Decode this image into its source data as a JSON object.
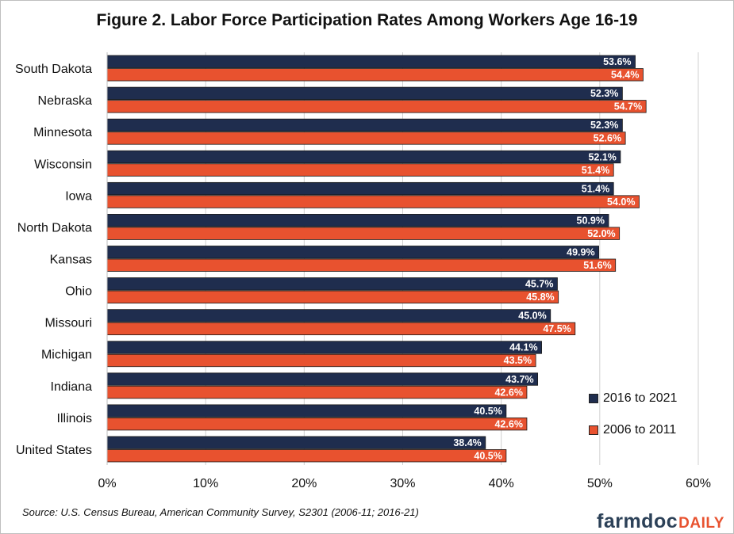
{
  "colors": {
    "series1": "#1f2d4e",
    "series2": "#e8522f"
  },
  "footer": {
    "source": "Source: U.S. Census Bureau, American Community Survey, S2301 (2006-11; 2016-21)",
    "brand_part1": "farmdoc",
    "brand_part2": "DAILY"
  },
  "chart_data": {
    "type": "bar",
    "orientation": "horizontal",
    "title": "Figure 2. Labor Force Participation Rates Among Workers Age 16-19",
    "categories": [
      "South Dakota",
      "Nebraska",
      "Minnesota",
      "Wisconsin",
      "Iowa",
      "North Dakota",
      "Kansas",
      "Ohio",
      "Missouri",
      "Michigan",
      "Indiana",
      "Illinois",
      "United States"
    ],
    "series": [
      {
        "name": "2016 to 2021",
        "values": [
          53.6,
          52.3,
          52.3,
          52.1,
          51.4,
          50.9,
          49.9,
          45.7,
          45.0,
          44.1,
          43.7,
          40.5,
          38.4
        ],
        "labels": [
          "53.6%",
          "52.3%",
          "52.3%",
          "52.1%",
          "51.4%",
          "50.9%",
          "49.9%",
          "45.7%",
          "45.0%",
          "44.1%",
          "43.7%",
          "40.5%",
          "38.4%"
        ]
      },
      {
        "name": "2006 to 2011",
        "values": [
          54.4,
          54.7,
          52.6,
          51.4,
          54.0,
          52.0,
          51.6,
          45.8,
          47.5,
          43.5,
          42.6,
          42.6,
          40.5
        ],
        "labels": [
          "54.4%",
          "54.7%",
          "52.6%",
          "51.4%",
          "54.0%",
          "52.0%",
          "51.6%",
          "45.8%",
          "47.5%",
          "43.5%",
          "42.6%",
          "42.6%",
          "40.5%"
        ]
      }
    ],
    "xlim": [
      0,
      60
    ],
    "xticks": [
      "0%",
      "10%",
      "20%",
      "30%",
      "40%",
      "50%",
      "60%"
    ],
    "grid": "vertical",
    "legend_position": "bottom-right",
    "xlabel": "",
    "ylabel": ""
  }
}
